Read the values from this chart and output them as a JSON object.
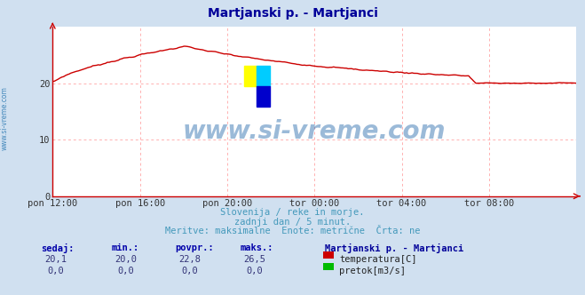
{
  "title": "Martjanski p. - Martjanci",
  "title_color": "#000099",
  "bg_color": "#d0e0f0",
  "plot_bg_color": "#ffffff",
  "grid_color": "#ffb0b0",
  "axis_color": "#cc0000",
  "x_labels": [
    "pon 12:00",
    "pon 16:00",
    "pon 20:00",
    "tor 00:00",
    "tor 04:00",
    "tor 08:00"
  ],
  "x_ticks_norm": [
    0.0,
    0.1667,
    0.3333,
    0.5,
    0.6667,
    0.8333
  ],
  "y_min": 0,
  "y_max": 30,
  "y_ticks": [
    0,
    10,
    20
  ],
  "watermark": "www.si-vreme.com",
  "watermark_color": "#2266aa",
  "sub_text1": "Slovenija / reke in morje.",
  "sub_text2": "zadnji dan / 5 minut.",
  "sub_text3": "Meritve: maksimalne  Enote: metrične  Črta: ne",
  "sub_text_color": "#4499bb",
  "legend_title": "Martjanski p. - Martjanci",
  "legend_title_color": "#000099",
  "legend_items": [
    {
      "label": "temperatura[C]",
      "color": "#cc0000"
    },
    {
      "label": "pretok[m3/s]",
      "color": "#00bb00"
    }
  ],
  "table_headers": [
    "sedaj:",
    "min.:",
    "povpr.:",
    "maks.:"
  ],
  "table_row1": [
    "20,1",
    "20,0",
    "22,8",
    "26,5"
  ],
  "table_row2": [
    "0,0",
    "0,0",
    "0,0",
    "0,0"
  ],
  "table_color": "#0000aa",
  "table_value_color": "#333377",
  "left_label": "www.si-vreme.com",
  "left_label_color": "#4488bb",
  "logo_colors": [
    "#ffff00",
    "#00ccff",
    "#0000cc"
  ],
  "tick_label_color": "#333333"
}
